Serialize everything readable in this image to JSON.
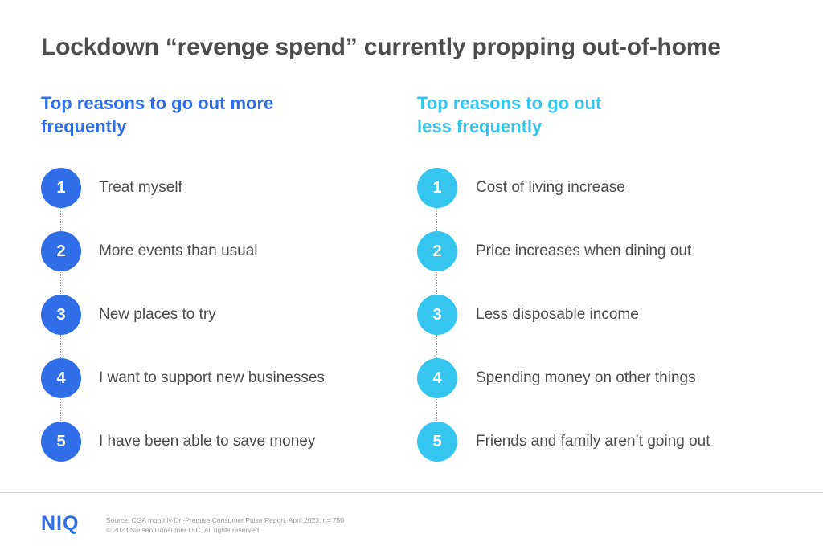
{
  "title": "Lockdown “revenge spend” currently propping out-of-home",
  "colors": {
    "title": "#4d4d4d",
    "more_accent": "#2f6ee6",
    "less_accent": "#35c6f0",
    "brand": "#2f6ee6"
  },
  "more": {
    "heading_line1": "Top reasons to go out more",
    "heading_line2": "frequently",
    "items": [
      {
        "number": "1",
        "label": "Treat myself"
      },
      {
        "number": "2",
        "label": "More events than usual"
      },
      {
        "number": "3",
        "label": "New places to try"
      },
      {
        "number": "4",
        "label": "I want to support new businesses"
      },
      {
        "number": "5",
        "label": "I have been able to save money"
      }
    ]
  },
  "less": {
    "heading_line1": "Top reasons to go out",
    "heading_line2": "less frequently",
    "items": [
      {
        "number": "1",
        "label": "Cost of living increase"
      },
      {
        "number": "2",
        "label": "Price increases when dining out"
      },
      {
        "number": "3",
        "label": "Less disposable income"
      },
      {
        "number": "4",
        "label": "Spending money on other things"
      },
      {
        "number": "5",
        "label": "Friends and family aren’t going out"
      }
    ]
  },
  "footer": {
    "logo": "NIQ",
    "source_line": "Source: CGA monthly On-Premise Consumer Pulse Report, April 2023, n= 750",
    "copyright_line": "© 2023 Nielsen Consumer LLC. All rights reserved."
  }
}
